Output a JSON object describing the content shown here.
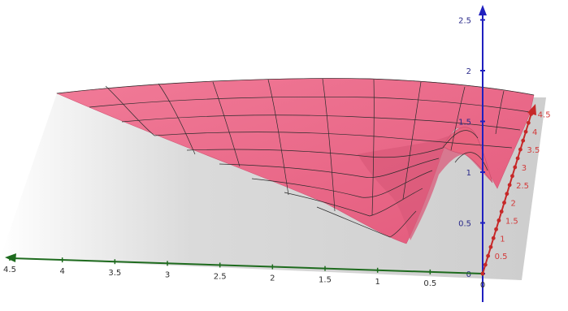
{
  "scene": {
    "type": "3d-surface-plot",
    "background": "#ffffff",
    "colors": {
      "surface": "#ec6d8e",
      "surface_dark": "#d9546f",
      "mesh": "#2b2b2b",
      "plane": "#cfcfcf",
      "x_axis": "#1e6b1e",
      "y_axis": "#c62828",
      "z_axis": "#1f1fbf"
    },
    "axes": {
      "x": {
        "ticks": [
          "4.5",
          "4",
          "3.5",
          "3",
          "2.5",
          "2",
          "1.5",
          "1",
          "0.5",
          "0"
        ]
      },
      "y": {
        "ticks": [
          "0.5",
          "1",
          "1.5",
          "2",
          "2.5",
          "3",
          "3.5",
          "4",
          "4.5"
        ]
      },
      "z": {
        "ticks": [
          "0",
          "0.5",
          "1",
          "1.5",
          "2",
          "2.5"
        ]
      }
    }
  }
}
